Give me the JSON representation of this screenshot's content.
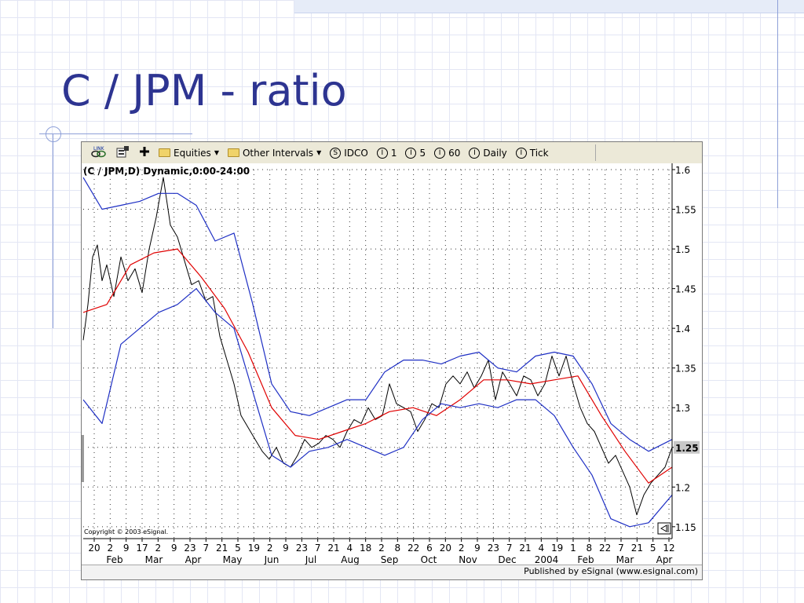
{
  "slide": {
    "title": "C / JPM - ratio"
  },
  "toolbar": {
    "items": [
      {
        "icon": "link-icon",
        "label": ""
      },
      {
        "icon": "properties-icon",
        "label": ""
      },
      {
        "icon": "plus-icon",
        "label": ""
      },
      {
        "icon": "folder-icon",
        "label": "Equities"
      },
      {
        "icon": "folder-icon",
        "label": "Other Intervals"
      },
      {
        "icon": "circle-s-icon",
        "glyph": "S",
        "label": "IDCO"
      },
      {
        "icon": "circle-i-icon",
        "glyph": "I",
        "label": "1"
      },
      {
        "icon": "circle-i-icon",
        "glyph": "I",
        "label": "5"
      },
      {
        "icon": "circle-i-icon",
        "glyph": "I",
        "label": "60"
      },
      {
        "icon": "circle-i-icon",
        "glyph": "I",
        "label": "Daily"
      },
      {
        "icon": "circle-i-icon",
        "glyph": "I",
        "label": "Tick"
      }
    ]
  },
  "chart_header": "(C / JPM,D) Dynamic,0:00-24:00",
  "copyright": "Copyright © 2003 eSignal.",
  "footer": "Published by eSignal (www.esignal.com)",
  "colors": {
    "price": "#000000",
    "moving_average": "#e00000",
    "bands": "#1e2fc4",
    "title": "#2d3491"
  },
  "chart_data": {
    "type": "line",
    "title": "(C / JPM,D) Dynamic,0:00-24:00",
    "y_ticks": [
      "1.6",
      "1.55",
      "1.5",
      "1.45",
      "1.4",
      "1.35",
      "1.3",
      "1.25",
      "1.2",
      "1.15"
    ],
    "ylim": [
      1.135,
      1.6
    ],
    "y_axis_position": "right",
    "grid": true,
    "last_value_label": "1.25",
    "x_day_ticks": [
      "20",
      "2",
      "9",
      "17",
      "2",
      "9",
      "23",
      "7",
      "21",
      "5",
      "19",
      "2",
      "9",
      "23",
      "7",
      "21",
      "4",
      "18",
      "2",
      "8",
      "22",
      "6",
      "20",
      "2",
      "9",
      "23",
      "7",
      "21",
      "4",
      "19",
      "1",
      "8",
      "22",
      "7",
      "21",
      "5",
      "12"
    ],
    "x_month_labels": [
      "Feb",
      "Mar",
      "Apr",
      "May",
      "Jun",
      "Jul",
      "Aug",
      "Sep",
      "Oct",
      "Nov",
      "Dec",
      "2004",
      "Feb",
      "Mar",
      "Apr"
    ],
    "series": [
      {
        "style": "price",
        "x": [
          0,
          2,
          4,
          6,
          8,
          10,
          13,
          16,
          19,
          22,
          25,
          28,
          31,
          34,
          37,
          40,
          43,
          46,
          49,
          52,
          55,
          58,
          61,
          64,
          67,
          70,
          73,
          76,
          79,
          82,
          85,
          88,
          91,
          94,
          97,
          100,
          103,
          106,
          109,
          112,
          115,
          118,
          121,
          124,
          127,
          130,
          133,
          136,
          139,
          142,
          145,
          148,
          151,
          154,
          157,
          160,
          163,
          166,
          169,
          172,
          175,
          178,
          181,
          184,
          187,
          190,
          193,
          196,
          199,
          202,
          205,
          208,
          211,
          214,
          217,
          220,
          223,
          226,
          229,
          232,
          235,
          238,
          241,
          244,
          247,
          250
        ],
        "y": [
          1.385,
          1.43,
          1.49,
          1.505,
          1.46,
          1.48,
          1.44,
          1.49,
          1.46,
          1.475,
          1.445,
          1.5,
          1.54,
          1.59,
          1.53,
          1.515,
          1.485,
          1.455,
          1.46,
          1.435,
          1.44,
          1.39,
          1.36,
          1.33,
          1.29,
          1.275,
          1.26,
          1.245,
          1.235,
          1.25,
          1.23,
          1.225,
          1.24,
          1.26,
          1.25,
          1.255,
          1.265,
          1.26,
          1.25,
          1.27,
          1.285,
          1.28,
          1.3,
          1.285,
          1.29,
          1.33,
          1.305,
          1.3,
          1.295,
          1.27,
          1.285,
          1.305,
          1.3,
          1.33,
          1.34,
          1.33,
          1.345,
          1.325,
          1.34,
          1.36,
          1.31,
          1.345,
          1.33,
          1.315,
          1.34,
          1.335,
          1.315,
          1.33,
          1.365,
          1.34,
          1.365,
          1.33,
          1.3,
          1.28,
          1.27,
          1.25,
          1.23,
          1.24,
          1.22,
          1.2,
          1.165,
          1.19,
          1.205,
          1.215,
          1.225,
          1.25
        ]
      },
      {
        "style": "moving_average",
        "x": [
          0,
          10,
          20,
          30,
          40,
          50,
          60,
          70,
          80,
          90,
          100,
          110,
          120,
          130,
          140,
          150,
          160,
          170,
          180,
          190,
          200,
          210,
          220,
          230,
          240,
          250
        ],
        "y": [
          1.42,
          1.43,
          1.48,
          1.495,
          1.5,
          1.465,
          1.425,
          1.37,
          1.3,
          1.265,
          1.26,
          1.27,
          1.28,
          1.295,
          1.3,
          1.29,
          1.31,
          1.335,
          1.335,
          1.33,
          1.335,
          1.34,
          1.29,
          1.245,
          1.205,
          1.225
        ]
      },
      {
        "style": "bands",
        "x": [
          0,
          8,
          16,
          24,
          32,
          40,
          48,
          56,
          64,
          72,
          80,
          88,
          96,
          104,
          112,
          120,
          128,
          136,
          144,
          152,
          160,
          168,
          176,
          184,
          192,
          200,
          208,
          216,
          224,
          232,
          240,
          250
        ],
        "y": [
          1.59,
          1.55,
          1.555,
          1.56,
          1.57,
          1.57,
          1.555,
          1.51,
          1.52,
          1.43,
          1.33,
          1.295,
          1.29,
          1.3,
          1.31,
          1.31,
          1.345,
          1.36,
          1.36,
          1.355,
          1.365,
          1.37,
          1.35,
          1.345,
          1.365,
          1.37,
          1.365,
          1.33,
          1.28,
          1.26,
          1.245,
          1.26
        ]
      },
      {
        "style": "bands",
        "x": [
          0,
          8,
          16,
          24,
          32,
          40,
          48,
          56,
          64,
          72,
          80,
          88,
          96,
          104,
          112,
          120,
          128,
          136,
          144,
          152,
          160,
          168,
          176,
          184,
          192,
          200,
          208,
          216,
          224,
          232,
          240,
          250
        ],
        "y": [
          1.31,
          1.28,
          1.38,
          1.4,
          1.42,
          1.43,
          1.45,
          1.42,
          1.4,
          1.32,
          1.24,
          1.225,
          1.245,
          1.25,
          1.26,
          1.25,
          1.24,
          1.25,
          1.285,
          1.305,
          1.3,
          1.305,
          1.3,
          1.31,
          1.31,
          1.29,
          1.25,
          1.215,
          1.16,
          1.15,
          1.155,
          1.19
        ]
      }
    ]
  }
}
